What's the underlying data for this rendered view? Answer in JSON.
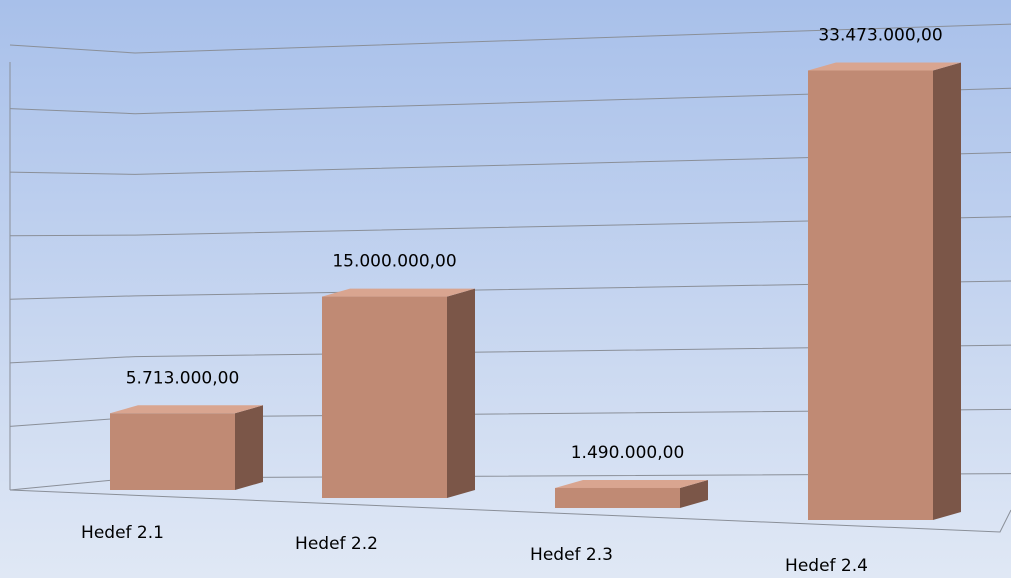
{
  "chart_data": {
    "type": "bar3d",
    "categories": [
      "Hedef 2.1",
      "Hedef 2.2",
      "Hedef 2.3",
      "Hedef 2.4"
    ],
    "values": [
      5713000,
      15000000,
      1490000,
      33473000
    ],
    "value_labels": [
      "5.713.000,00",
      "15.000.000,00",
      "1.490.000,00",
      "33.473.000,00"
    ],
    "color": "#c08a74",
    "ylim": [
      0,
      35000000
    ],
    "yticks": [
      0,
      5000000,
      10000000,
      15000000,
      20000000,
      25000000,
      30000000,
      35000000
    ],
    "grid": true
  }
}
